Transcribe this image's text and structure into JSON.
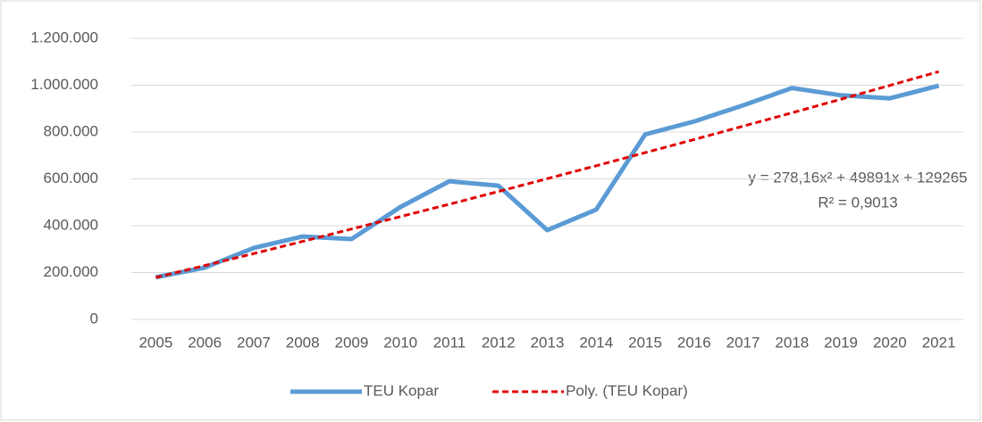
{
  "chart_data": {
    "type": "line",
    "categories": [
      "2005",
      "2006",
      "2007",
      "2008",
      "2009",
      "2010",
      "2011",
      "2012",
      "2013",
      "2014",
      "2015",
      "2016",
      "2017",
      "2018",
      "2019",
      "2020",
      "2021"
    ],
    "series": [
      {
        "name": "TEU Kopar",
        "color": "#5b9bd5",
        "values": [
          180000,
          221000,
          305000,
          354000,
          343000,
          480000,
          590000,
          571000,
          381000,
          469000,
          790000,
          845000,
          914000,
          988000,
          957000,
          944000,
          998000
        ]
      },
      {
        "name": "Poly. (TEU Kopar)",
        "color": "#e00000",
        "dashed": true,
        "values": [
          179000,
          230000,
          281000,
          333000,
          386000,
          439000,
          492000,
          546000,
          601000,
          656000,
          712000,
          768000,
          825000,
          882000,
          940000,
          999000,
          1058000
        ]
      }
    ],
    "ylim": [
      0,
      1200000
    ],
    "yticks": [
      0,
      {
        "value": 200000,
        "label": "200.000"
      },
      {
        "value": 400000,
        "label": "400.000"
      },
      {
        "value": 600000,
        "label": "600.000"
      },
      {
        "value": 800000,
        "label": "800.000"
      },
      {
        "value": 1000000,
        "label": "1.000.000"
      },
      {
        "value": 1200000,
        "label": "1.200.000"
      }
    ],
    "grid": true,
    "legend": "bottom",
    "annotations": [
      "y = 278,16x² + 49891x + 129265",
      "R² = 0,9013"
    ]
  }
}
